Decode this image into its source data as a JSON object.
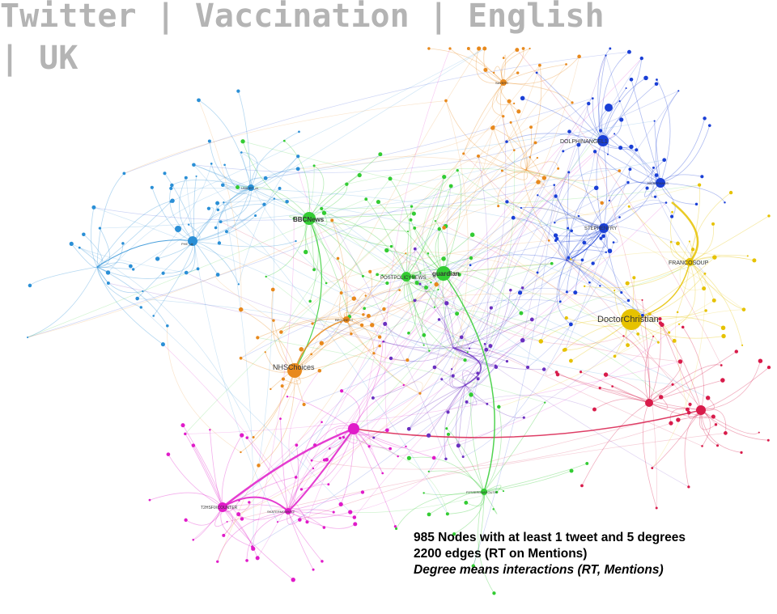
{
  "title": "Twitter | Vaccination | English | UK",
  "labels": {
    "bbcnews": "BBCNews",
    "guardian": "guardian",
    "postpolicynews": "POSTPOLICYNEWS",
    "nhschoices": "NHSChoices",
    "doctorchristian": "DoctorChristian",
    "francosoup": "FRANCOSOUP",
    "stephenfry": "STEPHENFRY",
    "dolphinangel": "DOLPHINANGEL1",
    "unicef": "UNICEF_uk",
    "phe": "PHE_uk",
    "savers": "SAVERS",
    "nick": "NICKFRANKS",
    "t2": "T2HSFIXCOUNTER",
    "skatermam": "SKATERMOMMYZ",
    "ptzerdna": "P2TZERDNASOUTH",
    "beccbeth": "BECCBETH"
  },
  "caption": {
    "line1": "985 Nodes with at least 1 tweet and 5 degrees",
    "line2": "2200 edges (RT on Mentions)",
    "line3": "Degree means interactions (RT, Mentions)"
  },
  "colors": {
    "blue_cluster": "#2a8fd6",
    "green_cluster": "#33cc33",
    "orange_cluster": "#e8891c",
    "navy_cluster": "#1a3fd6",
    "yellow_cluster": "#e6c200",
    "red_cluster": "#d81b4a",
    "magenta_cluster": "#e01bc9",
    "purple_cluster": "#6a2fc0"
  }
}
